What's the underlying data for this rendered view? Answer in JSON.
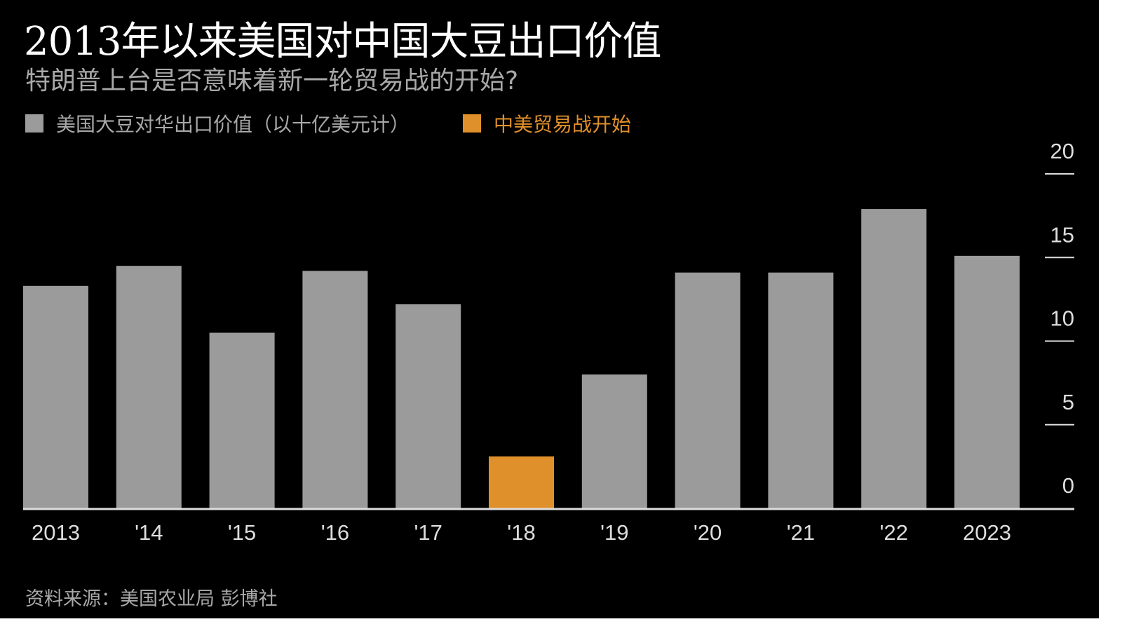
{
  "title": "2013年以来美国对中国大豆出口价值",
  "subtitle": "特朗普上台是否意味着新一轮贸易战的开始?",
  "source": "资料来源：美国农业局 彭博社",
  "colors": {
    "bar": "#9b9b9b",
    "highlight": "#e0902a",
    "background": "#000000"
  },
  "chart_data": {
    "type": "bar",
    "title": "2013年以来美国对中国大豆出口价值",
    "categories": [
      "2013",
      "'14",
      "'15",
      "'16",
      "'17",
      "'18",
      "'19",
      "'20",
      "'21",
      "'22",
      "2023"
    ],
    "values": [
      13.3,
      14.5,
      10.5,
      14.2,
      12.2,
      3.1,
      8.0,
      14.1,
      14.1,
      17.9,
      15.1
    ],
    "highlight_index": 5,
    "ylim": [
      0,
      20
    ],
    "yticks": [
      "0",
      "5",
      "10",
      "15",
      "20"
    ],
    "ytick_values": [
      0,
      5,
      10,
      15,
      20
    ],
    "yaxis_position": "right",
    "legend": [
      {
        "label": "美国大豆对华出口价值（以十亿美元计）",
        "color": "#9b9b9b"
      },
      {
        "label": "中美贸易战开始",
        "color": "#e0902a"
      }
    ],
    "legend_placement": "top-left",
    "grid": false
  }
}
